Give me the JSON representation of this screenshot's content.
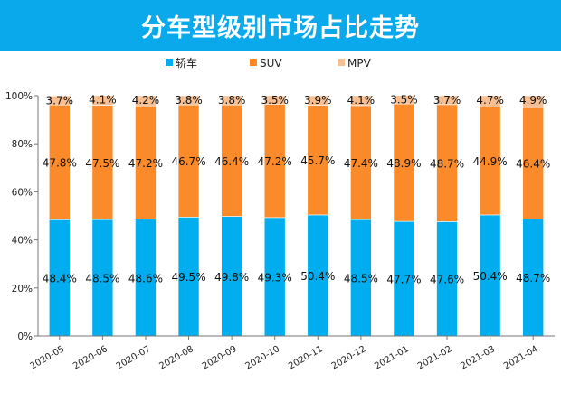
{
  "chart_data": {
    "type": "bar",
    "stacked": true,
    "title": "分车型级别市场占比走势",
    "categories": [
      "2020-05",
      "2020-06",
      "2020-07",
      "2020-08",
      "2020-09",
      "2020-10",
      "2020-11",
      "2020-12",
      "2021-01",
      "2021-02",
      "2021-03",
      "2021-04"
    ],
    "series": [
      {
        "name": "轿车",
        "color": "#00aeef",
        "values": [
          48.4,
          48.5,
          48.6,
          49.5,
          49.8,
          49.3,
          50.4,
          48.5,
          47.7,
          47.6,
          50.4,
          48.7
        ]
      },
      {
        "name": "SUV",
        "color": "#fa8a2a",
        "values": [
          47.8,
          47.5,
          47.2,
          46.7,
          46.4,
          47.2,
          45.7,
          47.4,
          48.9,
          48.7,
          44.9,
          46.4
        ]
      },
      {
        "name": "MPV",
        "color": "#f8bf92",
        "values": [
          3.7,
          4.1,
          4.2,
          3.8,
          3.8,
          3.5,
          3.9,
          4.1,
          3.5,
          3.7,
          4.7,
          4.9
        ]
      }
    ],
    "yticks": [
      "0%",
      "20%",
      "40%",
      "60%",
      "80%",
      "100%"
    ],
    "ylim": [
      0,
      100
    ],
    "legend": "top-center",
    "grid": false,
    "value_unit": "%"
  }
}
